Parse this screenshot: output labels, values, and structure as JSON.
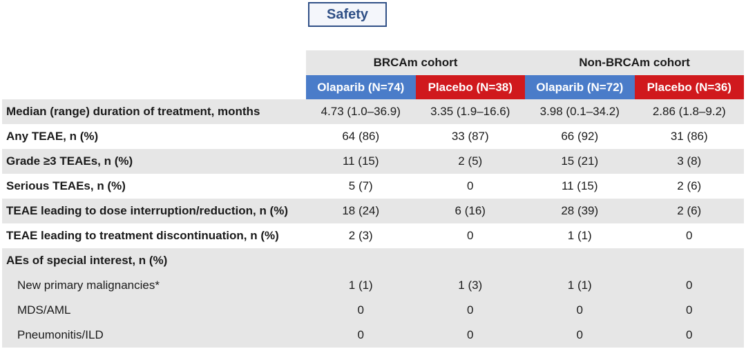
{
  "title": "Safety",
  "cohorts": [
    {
      "label": "BRCAm cohort"
    },
    {
      "label": "Non-BRCAm cohort"
    }
  ],
  "arms": [
    {
      "label": "Olaparib (N=74)",
      "color": "#4a7cc9"
    },
    {
      "label": "Placebo (N=38)",
      "color": "#d0191d"
    },
    {
      "label": "Olaparib (N=72)",
      "color": "#4a7cc9"
    },
    {
      "label": "Placebo (N=36)",
      "color": "#d0191d"
    }
  ],
  "rows": [
    {
      "label": "Median (range) duration of treatment, months",
      "values": [
        "4.73 (1.0–36.9)",
        "3.35 (1.9–16.6)",
        "3.98 (0.1–34.2)",
        "2.86 (1.8–9.2)"
      ]
    },
    {
      "label": "Any TEAE, n (%)",
      "values": [
        "64 (86)",
        "33 (87)",
        "66 (92)",
        "31 (86)"
      ]
    },
    {
      "label": "Grade ≥3 TEAEs, n (%)",
      "values": [
        "11 (15)",
        "2 (5)",
        "15 (21)",
        "3 (8)"
      ]
    },
    {
      "label": "Serious TEAEs, n (%)",
      "values": [
        "5 (7)",
        "0",
        "11 (15)",
        "2 (6)"
      ]
    },
    {
      "label": "TEAE leading to dose interruption/reduction, n (%)",
      "values": [
        "18 (24)",
        "6 (16)",
        "28 (39)",
        "2 (6)"
      ]
    },
    {
      "label": "TEAE leading to treatment discontinuation, n (%)",
      "values": [
        "2 (3)",
        "0",
        "1 (1)",
        "0"
      ]
    },
    {
      "label": "AEs of special interest, n (%)",
      "values": [
        "",
        "",
        "",
        ""
      ]
    },
    {
      "label": "New primary malignancies*",
      "values": [
        "1 (1)",
        "1 (3)",
        "1 (1)",
        "0"
      ]
    },
    {
      "label": "MDS/AML",
      "values": [
        "0",
        "0",
        "0",
        "0"
      ]
    },
    {
      "label": "Pneumonitis/ILD",
      "values": [
        "0",
        "0",
        "0",
        "0"
      ]
    }
  ]
}
